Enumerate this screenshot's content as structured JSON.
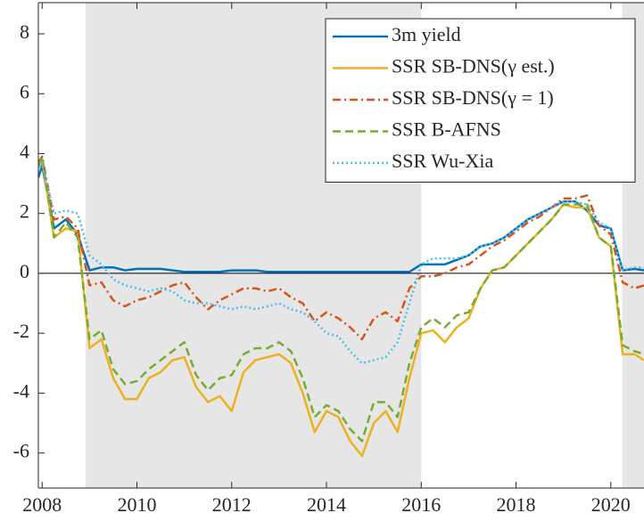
{
  "chart_data": {
    "type": "line",
    "x": [
      2007.92,
      2008,
      2008.25,
      2008.5,
      2008.75,
      2009,
      2009.25,
      2009.5,
      2009.75,
      2010,
      2010.25,
      2010.5,
      2010.75,
      2011,
      2011.25,
      2011.5,
      2011.75,
      2012,
      2012.25,
      2012.5,
      2012.75,
      2013,
      2013.25,
      2013.5,
      2013.75,
      2014,
      2014.25,
      2014.5,
      2014.75,
      2015,
      2015.25,
      2015.5,
      2015.75,
      2016,
      2016.25,
      2016.5,
      2016.75,
      2017,
      2017.25,
      2017.5,
      2017.75,
      2018,
      2018.25,
      2018.5,
      2018.75,
      2019,
      2019.25,
      2019.5,
      2019.75,
      2020,
      2020.25,
      2020.5,
      2020.7
    ],
    "series": [
      {
        "name": "3m yield",
        "color": "#0072bd",
        "style": "solid",
        "values": [
          3.2,
          3.6,
          1.5,
          1.8,
          1.3,
          0.1,
          0.2,
          0.2,
          0.1,
          0.15,
          0.15,
          0.15,
          0.1,
          0.05,
          0.05,
          0.05,
          0.05,
          0.1,
          0.1,
          0.1,
          0.05,
          0.05,
          0.05,
          0.05,
          0.05,
          0.05,
          0.05,
          0.05,
          0.05,
          0.05,
          0.05,
          0.05,
          0.05,
          0.3,
          0.3,
          0.3,
          0.45,
          0.6,
          0.9,
          1.0,
          1.2,
          1.5,
          1.8,
          2.0,
          2.2,
          2.4,
          2.4,
          2.1,
          1.6,
          1.5,
          0.1,
          0.15,
          0.1
        ]
      },
      {
        "name": "SSR SB-DNS(γ est.)",
        "color": "#edb120",
        "style": "solid",
        "values": [
          3.5,
          3.8,
          1.2,
          1.5,
          1.4,
          -2.5,
          -2.2,
          -3.5,
          -4.2,
          -4.2,
          -3.5,
          -3.3,
          -2.9,
          -2.8,
          -3.8,
          -4.3,
          -4.1,
          -4.6,
          -3.3,
          -2.9,
          -2.8,
          -2.7,
          -3.0,
          -4.0,
          -5.3,
          -4.6,
          -4.8,
          -5.6,
          -6.1,
          -5.0,
          -4.6,
          -5.3,
          -3.5,
          -2.0,
          -1.9,
          -2.3,
          -1.8,
          -1.5,
          -0.5,
          0.1,
          0.2,
          0.6,
          1.0,
          1.4,
          1.8,
          2.3,
          2.2,
          2.2,
          1.2,
          0.9,
          -2.7,
          -2.7,
          -2.9
        ]
      },
      {
        "name": "SSR SB-DNS(γ = 1)",
        "color": "#d95319",
        "style": "dashdot",
        "values": [
          3.7,
          3.9,
          1.8,
          1.9,
          1.5,
          -0.4,
          -0.3,
          -0.9,
          -1.1,
          -0.9,
          -0.8,
          -0.6,
          -0.4,
          -0.3,
          -0.8,
          -1.2,
          -0.9,
          -0.7,
          -0.5,
          -0.5,
          -0.6,
          -0.5,
          -0.8,
          -1.0,
          -1.6,
          -1.3,
          -1.5,
          -1.8,
          -2.2,
          -1.5,
          -1.3,
          -1.6,
          -0.5,
          -0.1,
          -0.1,
          0.0,
          0.2,
          0.3,
          0.6,
          0.9,
          1.1,
          1.4,
          1.7,
          1.9,
          2.2,
          2.5,
          2.5,
          2.6,
          1.6,
          1.3,
          -0.3,
          -0.5,
          -0.4
        ]
      },
      {
        "name": "SSR B-AFNS",
        "color": "#77ac30",
        "style": "dashed",
        "values": [
          3.6,
          3.9,
          1.2,
          1.7,
          1.2,
          -2.2,
          -1.9,
          -3.2,
          -3.7,
          -3.6,
          -3.2,
          -2.9,
          -2.6,
          -2.3,
          -3.4,
          -3.9,
          -3.5,
          -3.4,
          -2.7,
          -2.5,
          -2.5,
          -2.3,
          -2.6,
          -3.5,
          -4.8,
          -4.4,
          -4.6,
          -5.2,
          -5.6,
          -4.3,
          -4.3,
          -4.8,
          -3.0,
          -1.8,
          -1.5,
          -1.8,
          -1.4,
          -1.3,
          -0.5,
          0.1,
          0.2,
          0.6,
          1.0,
          1.4,
          1.8,
          2.3,
          2.3,
          2.3,
          1.2,
          0.9,
          -2.4,
          -2.6,
          -2.7
        ]
      },
      {
        "name": "SSR Wu-Xia",
        "color": "#4dbeee",
        "style": "dotted",
        "values": [
          3.4,
          3.7,
          2.0,
          2.1,
          2.0,
          0.6,
          0.3,
          -0.2,
          -0.4,
          -0.5,
          -0.6,
          -0.5,
          -0.6,
          -0.9,
          -1.0,
          -1.0,
          -1.1,
          -1.2,
          -1.1,
          -1.2,
          -1.1,
          -1.0,
          -1.2,
          -1.3,
          -1.6,
          -2.0,
          -2.1,
          -2.6,
          -3.0,
          -2.9,
          -2.8,
          -2.3,
          -1.0,
          0.3,
          0.5,
          0.5,
          0.5,
          0.6,
          0.9,
          1.0,
          1.2,
          1.5,
          1.8,
          2.0,
          2.2,
          2.4,
          2.4,
          2.3,
          1.7,
          1.5,
          0.1,
          0.2,
          0.2
        ]
      }
    ],
    "xlim": [
      2007.92,
      2020.7
    ],
    "xticks": [
      2008,
      2010,
      2012,
      2014,
      2016,
      2018,
      2020
    ],
    "ylim": [
      -7.17,
      9.04
    ],
    "yticks": [
      -6,
      -4,
      -2,
      0,
      2,
      4,
      6,
      8
    ],
    "shaded_regions": [
      [
        2008.92,
        2016.0
      ],
      [
        2020.24,
        2020.7
      ]
    ],
    "shade_color": "#e6e6e6",
    "hlines": [
      0
    ],
    "legend": "northeast"
  }
}
